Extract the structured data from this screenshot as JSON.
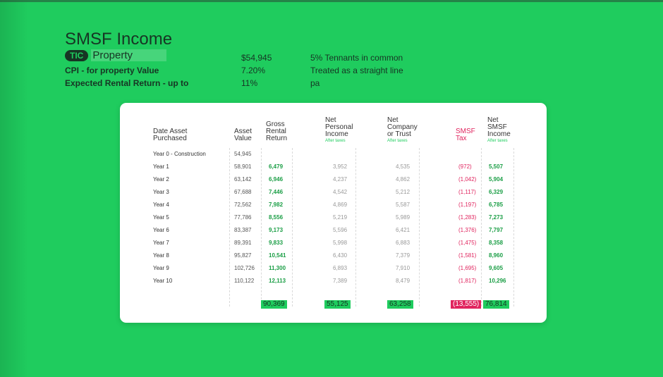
{
  "header": {
    "title": "SMSF Income",
    "tic_badge": "TIC",
    "tic_property": "Property",
    "rows": [
      {
        "label": "",
        "value": "$54,945",
        "note": "5% Tennants in common"
      },
      {
        "label": "CPI - for property Value",
        "value": "7.20%",
        "note": "Treated as a straight line"
      },
      {
        "label": "Expected Rental Return - up to",
        "value": "11%",
        "note": "pa"
      }
    ]
  },
  "table": {
    "headers": {
      "date": "Date Asset Purchased",
      "asset": "Asset Value",
      "gross": "Gross Rental Return",
      "net_personal": "Net Personal Income",
      "net_company": "Net Company or Trust",
      "smsf_tax": "SMSF Tax",
      "net_smsf": "Net SMSF Income",
      "after_taxes": "After taxes"
    },
    "rows": [
      {
        "label": "Year 0 - Construction",
        "asset": "54,945",
        "gross": "",
        "np": "",
        "nc": "",
        "tax": "",
        "ns": ""
      },
      {
        "label": "Year 1",
        "asset": "58,901",
        "gross": "6,479",
        "np": "3,952",
        "nc": "4,535",
        "tax": "(972)",
        "ns": "5,507"
      },
      {
        "label": "Year 2",
        "asset": "63,142",
        "gross": "6,946",
        "np": "4,237",
        "nc": "4,862",
        "tax": "(1,042)",
        "ns": "5,904"
      },
      {
        "label": "Year 3",
        "asset": "67,688",
        "gross": "7,446",
        "np": "4,542",
        "nc": "5,212",
        "tax": "(1,117)",
        "ns": "6,329"
      },
      {
        "label": "Year 4",
        "asset": "72,562",
        "gross": "7,982",
        "np": "4,869",
        "nc": "5,587",
        "tax": "(1,197)",
        "ns": "6,785"
      },
      {
        "label": "Year 5",
        "asset": "77,786",
        "gross": "8,556",
        "np": "5,219",
        "nc": "5,989",
        "tax": "(1,283)",
        "ns": "7,273"
      },
      {
        "label": "Year 6",
        "asset": "83,387",
        "gross": "9,173",
        "np": "5,596",
        "nc": "6,421",
        "tax": "(1,376)",
        "ns": "7,797"
      },
      {
        "label": "Year 7",
        "asset": "89,391",
        "gross": "9,833",
        "np": "5,998",
        "nc": "6,883",
        "tax": "(1,475)",
        "ns": "8,358"
      },
      {
        "label": "Year 8",
        "asset": "95,827",
        "gross": "10,541",
        "np": "6,430",
        "nc": "7,379",
        "tax": "(1,581)",
        "ns": "8,960"
      },
      {
        "label": "Year 9",
        "asset": "102,726",
        "gross": "11,300",
        "np": "6,893",
        "nc": "7,910",
        "tax": "(1,695)",
        "ns": "9,605"
      },
      {
        "label": "Year 10",
        "asset": "110,122",
        "gross": "12,113",
        "np": "7,389",
        "nc": "8,479",
        "tax": "(1,817)",
        "ns": "10,296"
      }
    ],
    "totals": {
      "gross": "90,369",
      "np": "55,125",
      "nc": "63,258",
      "tax": "(13,555)",
      "ns": "76,814"
    }
  },
  "colors": {
    "background": "#1fcc5e",
    "dark_text": "#173524",
    "negative": "#e0245e",
    "positive": "#1a9e45"
  }
}
